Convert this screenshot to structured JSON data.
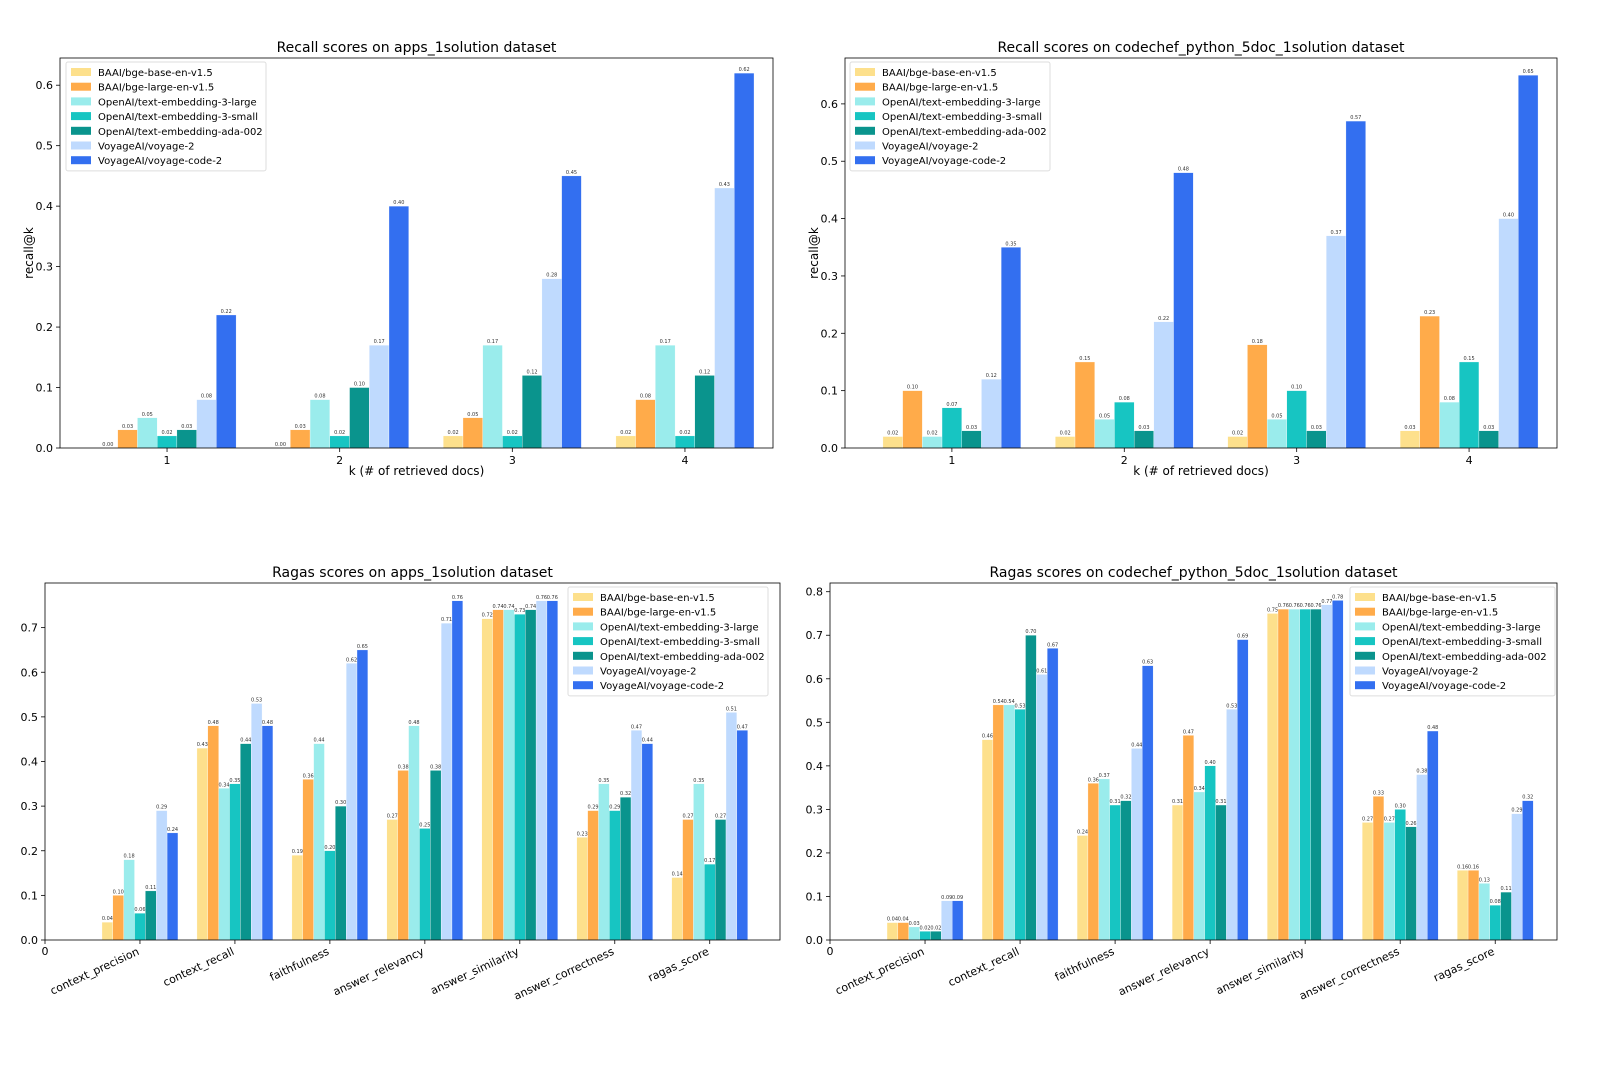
{
  "series_names": [
    "BAAI/bge-base-en-v1.5",
    "BAAI/bge-large-en-v1.5",
    "OpenAI/text-embedding-3-large",
    "OpenAI/text-embedding-3-small",
    "OpenAI/text-embedding-ada-002",
    "VoyageAI/voyage-2",
    "VoyageAI/voyage-code-2"
  ],
  "colors": [
    "#FDE08C",
    "#FFAB4A",
    "#9AECEC",
    "#17C5C2",
    "#0A948D",
    "#BFDAFE",
    "#336FF0"
  ],
  "chart_data": [
    {
      "type": "bar",
      "title": "Recall scores on apps_1solution dataset",
      "xlabel": "k (# of retrieved docs)",
      "ylabel": "recall@k",
      "categories": [
        "1",
        "2",
        "3",
        "4"
      ],
      "yticks": [
        "0.0",
        "0.1",
        "0.2",
        "0.3",
        "0.4",
        "0.5",
        "0.6"
      ],
      "ylim": [
        0,
        0.645
      ],
      "legend": "top-left",
      "series": [
        {
          "name": "BAAI/bge-base-en-v1.5",
          "values": [
            0.0,
            0.0,
            0.02,
            0.02
          ]
        },
        {
          "name": "BAAI/bge-large-en-v1.5",
          "values": [
            0.03,
            0.03,
            0.05,
            0.08
          ]
        },
        {
          "name": "OpenAI/text-embedding-3-large",
          "values": [
            0.05,
            0.08,
            0.17,
            0.17
          ]
        },
        {
          "name": "OpenAI/text-embedding-3-small",
          "values": [
            0.02,
            0.02,
            0.02,
            0.02
          ]
        },
        {
          "name": "OpenAI/text-embedding-ada-002",
          "values": [
            0.03,
            0.1,
            0.12,
            0.12
          ]
        },
        {
          "name": "VoyageAI/voyage-2",
          "values": [
            0.08,
            0.17,
            0.28,
            0.43
          ]
        },
        {
          "name": "VoyageAI/voyage-code-2",
          "values": [
            0.22,
            0.4,
            0.45,
            0.62
          ]
        }
      ]
    },
    {
      "type": "bar",
      "title": "Recall scores on codechef_python_5doc_1solution dataset",
      "xlabel": "k (# of retrieved docs)",
      "ylabel": "recall@k",
      "categories": [
        "1",
        "2",
        "3",
        "4"
      ],
      "yticks": [
        "0.0",
        "0.1",
        "0.2",
        "0.3",
        "0.4",
        "0.5",
        "0.6"
      ],
      "ylim": [
        0,
        0.68
      ],
      "legend": "top-left",
      "series": [
        {
          "name": "BAAI/bge-base-en-v1.5",
          "values": [
            0.02,
            0.02,
            0.02,
            0.03
          ]
        },
        {
          "name": "BAAI/bge-large-en-v1.5",
          "values": [
            0.1,
            0.15,
            0.18,
            0.23
          ]
        },
        {
          "name": "OpenAI/text-embedding-3-large",
          "values": [
            0.02,
            0.05,
            0.05,
            0.08
          ]
        },
        {
          "name": "OpenAI/text-embedding-3-small",
          "values": [
            0.07,
            0.08,
            0.1,
            0.15
          ]
        },
        {
          "name": "OpenAI/text-embedding-ada-002",
          "values": [
            0.03,
            0.03,
            0.03,
            0.03
          ]
        },
        {
          "name": "VoyageAI/voyage-2",
          "values": [
            0.12,
            0.22,
            0.37,
            0.4
          ]
        },
        {
          "name": "VoyageAI/voyage-code-2",
          "values": [
            0.35,
            0.48,
            0.57,
            0.65
          ]
        }
      ]
    },
    {
      "type": "bar",
      "title": "Ragas scores on apps_1solution dataset",
      "xlabel": "",
      "ylabel": "",
      "zero_xtick": "0",
      "categories": [
        "context_precision",
        "context_recall",
        "faithfulness",
        "answer_relevancy",
        "answer_similarity",
        "answer_correctness",
        "ragas_score"
      ],
      "yticks": [
        "0.0",
        "0.1",
        "0.2",
        "0.3",
        "0.4",
        "0.5",
        "0.6",
        "0.7"
      ],
      "ylim": [
        0,
        0.8
      ],
      "legend": "upper-right",
      "series": [
        {
          "name": "BAAI/bge-base-en-v1.5",
          "values": [
            0.04,
            0.43,
            0.19,
            0.27,
            0.72,
            0.23,
            0.14
          ]
        },
        {
          "name": "BAAI/bge-large-en-v1.5",
          "values": [
            0.1,
            0.48,
            0.36,
            0.38,
            0.74,
            0.29,
            0.27
          ]
        },
        {
          "name": "OpenAI/text-embedding-3-large",
          "values": [
            0.18,
            0.34,
            0.44,
            0.48,
            0.74,
            0.35,
            0.35
          ]
        },
        {
          "name": "OpenAI/text-embedding-3-small",
          "values": [
            0.06,
            0.35,
            0.2,
            0.25,
            0.73,
            0.29,
            0.17
          ]
        },
        {
          "name": "OpenAI/text-embedding-ada-002",
          "values": [
            0.11,
            0.44,
            0.3,
            0.38,
            0.74,
            0.32,
            0.27
          ]
        },
        {
          "name": "VoyageAI/voyage-2",
          "values": [
            0.29,
            0.53,
            0.62,
            0.71,
            0.76,
            0.47,
            0.51
          ]
        },
        {
          "name": "VoyageAI/voyage-code-2",
          "values": [
            0.24,
            0.48,
            0.65,
            0.76,
            0.76,
            0.44,
            0.47
          ]
        }
      ]
    },
    {
      "type": "bar",
      "title": "Ragas scores on codechef_python_5doc_1solution dataset",
      "xlabel": "",
      "ylabel": "",
      "zero_xtick": "0",
      "categories": [
        "context_precision",
        "context_recall",
        "faithfulness",
        "answer_relevancy",
        "answer_similarity",
        "answer_correctness",
        "ragas_score"
      ],
      "yticks": [
        "0.0",
        "0.1",
        "0.2",
        "0.3",
        "0.4",
        "0.5",
        "0.6",
        "0.7",
        "0.8"
      ],
      "ylim": [
        0,
        0.82
      ],
      "legend": "upper-right",
      "series": [
        {
          "name": "BAAI/bge-base-en-v1.5",
          "values": [
            0.04,
            0.46,
            0.24,
            0.31,
            0.75,
            0.27,
            0.16
          ]
        },
        {
          "name": "BAAI/bge-large-en-v1.5",
          "values": [
            0.04,
            0.54,
            0.36,
            0.47,
            0.76,
            0.33,
            0.16
          ]
        },
        {
          "name": "OpenAI/text-embedding-3-large",
          "values": [
            0.03,
            0.54,
            0.37,
            0.34,
            0.76,
            0.27,
            0.13
          ]
        },
        {
          "name": "OpenAI/text-embedding-3-small",
          "values": [
            0.02,
            0.53,
            0.31,
            0.4,
            0.76,
            0.3,
            0.08
          ]
        },
        {
          "name": "OpenAI/text-embedding-ada-002",
          "values": [
            0.02,
            0.7,
            0.32,
            0.31,
            0.76,
            0.26,
            0.11
          ]
        },
        {
          "name": "VoyageAI/voyage-2",
          "values": [
            0.09,
            0.61,
            0.44,
            0.53,
            0.77,
            0.38,
            0.29
          ]
        },
        {
          "name": "VoyageAI/voyage-code-2",
          "values": [
            0.09,
            0.67,
            0.63,
            0.69,
            0.78,
            0.48,
            0.32
          ]
        }
      ]
    }
  ]
}
